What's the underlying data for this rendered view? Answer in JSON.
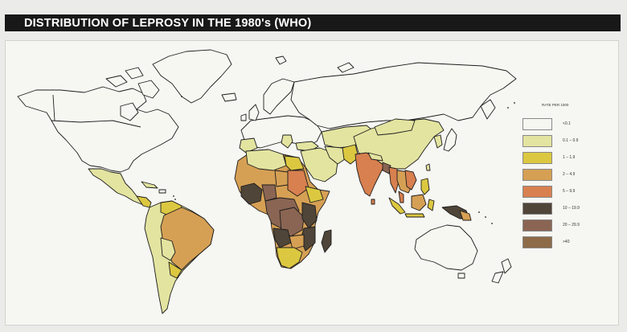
{
  "title": "DISTRIBUTION OF LEPROSY IN THE 1980's (WHO)",
  "legend": {
    "title": "RATE PER 1000",
    "items": [
      {
        "label": "<0.1",
        "color": "#f7f7f2"
      },
      {
        "label": "0.1 – 0.9",
        "color": "#e3e4a0"
      },
      {
        "label": "1 – 1.9",
        "color": "#dcc840"
      },
      {
        "label": "2 – 4.9",
        "color": "#d6a054"
      },
      {
        "label": "5 – 9.9",
        "color": "#d8804f"
      },
      {
        "label": "10 – 19.9",
        "color": "#4f4538"
      },
      {
        "label": "20 – 29.9",
        "color": "#8a6553"
      },
      {
        "label": ">40",
        "color": "#8d6a48"
      }
    ]
  },
  "colors": {
    "background": "#ebebea",
    "map_background": "#f6f6f2",
    "title_bar": "#181818",
    "outline": "#1c1c1c"
  }
}
